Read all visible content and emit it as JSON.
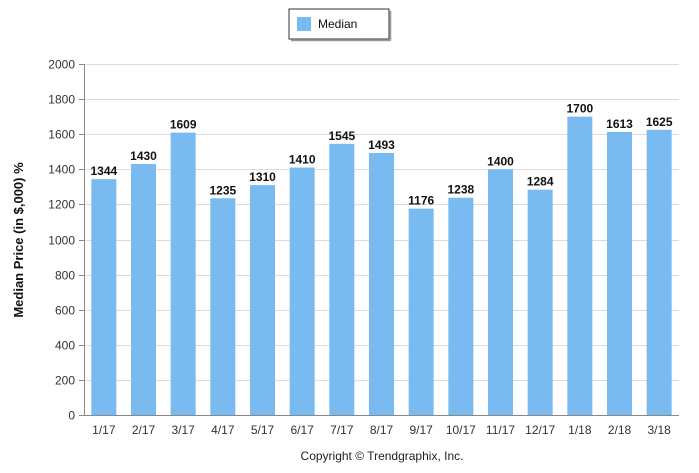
{
  "chart_data": {
    "type": "bar",
    "categories": [
      "1/17",
      "2/17",
      "3/17",
      "4/17",
      "5/17",
      "6/17",
      "7/17",
      "8/17",
      "9/17",
      "10/17",
      "11/17",
      "12/17",
      "1/18",
      "2/18",
      "3/18"
    ],
    "series": [
      {
        "name": "Median",
        "values": [
          1344,
          1430,
          1609,
          1235,
          1310,
          1410,
          1545,
          1493,
          1176,
          1238,
          1400,
          1284,
          1700,
          1613,
          1625
        ]
      }
    ],
    "ylabel": "Median Price (in $,000) %",
    "xlabel": "",
    "ylim": [
      0,
      2000
    ],
    "yticks": [
      0,
      200,
      400,
      600,
      800,
      1000,
      1200,
      1400,
      1600,
      1800,
      2000
    ],
    "grid": true,
    "legend_position": "top-center",
    "bar_color": "#79baf1",
    "data_labels": true
  },
  "footer": {
    "copyright": "Copyright © Trendgraphix, Inc."
  }
}
